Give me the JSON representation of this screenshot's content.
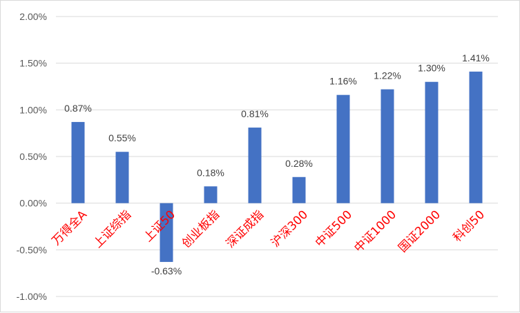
{
  "chart_data": {
    "type": "bar",
    "categories": [
      "万得全A",
      "上证综指",
      "上证50",
      "创业板指",
      "深证成指",
      "沪深300",
      "中证500",
      "中证1000",
      "国证2000",
      "科创50"
    ],
    "values": [
      0.87,
      0.55,
      -0.63,
      0.18,
      0.81,
      0.28,
      1.16,
      1.22,
      1.3,
      1.41
    ],
    "value_labels": [
      "0.87%",
      "0.55%",
      "-0.63%",
      "0.18%",
      "0.81%",
      "0.28%",
      "1.16%",
      "1.22%",
      "1.30%",
      "1.41%"
    ],
    "y_ticks": [
      -1.0,
      -0.5,
      0.0,
      0.5,
      1.0,
      1.5,
      2.0
    ],
    "y_tick_labels": [
      "-1.00%",
      "-0.50%",
      "0.00%",
      "0.50%",
      "1.00%",
      "1.50%",
      "2.00%"
    ],
    "ylim": [
      -1.0,
      2.0
    ],
    "title": "",
    "xlabel": "",
    "ylabel": "",
    "grid": true,
    "legend": "none",
    "colors": {
      "bar": "#4472c4",
      "category_label": "#ff0000",
      "gridline": "#d9d9d9",
      "axis_text": "#595959"
    }
  }
}
